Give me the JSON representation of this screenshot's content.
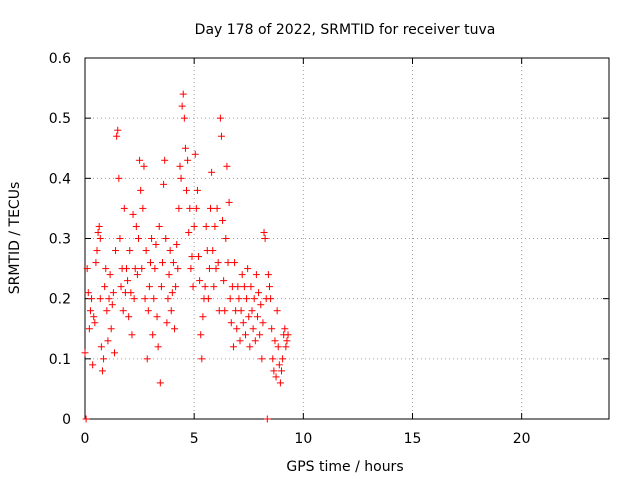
{
  "chart_data": {
    "type": "scatter",
    "title": "Day 178 of 2022, SRMTID for receiver tuva",
    "xlabel": "GPS time / hours",
    "ylabel": "SRMTID / TECUs",
    "xlim": [
      0,
      24
    ],
    "ylim": [
      0,
      0.6
    ],
    "x_ticks": [
      0,
      5,
      10,
      15,
      20
    ],
    "x_tick_labels": [
      "0",
      "5",
      "10",
      "15",
      "20"
    ],
    "y_ticks": [
      0,
      0.1,
      0.2,
      0.3,
      0.4,
      0.5,
      0.6
    ],
    "y_tick_labels": [
      "0",
      "0.1",
      "0.2",
      "0.3",
      "0.4",
      "0.5",
      "0.6"
    ],
    "grid": true,
    "marker": "plus",
    "colors": {
      "series": "#ff0000",
      "grid": "#a0a0a0",
      "axis": "#000000"
    },
    "series": [
      {
        "name": "SRMTID",
        "points": [
          [
            0.0,
            0.11
          ],
          [
            0.05,
            0.0
          ],
          [
            0.1,
            0.25
          ],
          [
            0.15,
            0.21
          ],
          [
            0.2,
            0.15
          ],
          [
            0.25,
            0.18
          ],
          [
            0.3,
            0.2
          ],
          [
            0.35,
            0.09
          ],
          [
            0.4,
            0.17
          ],
          [
            0.45,
            0.16
          ],
          [
            0.5,
            0.26
          ],
          [
            0.55,
            0.28
          ],
          [
            0.6,
            0.31
          ],
          [
            0.65,
            0.32
          ],
          [
            0.7,
            0.3
          ],
          [
            0.7,
            0.2
          ],
          [
            0.75,
            0.12
          ],
          [
            0.8,
            0.08
          ],
          [
            0.85,
            0.1
          ],
          [
            0.9,
            0.22
          ],
          [
            0.95,
            0.25
          ],
          [
            1.0,
            0.18
          ],
          [
            1.05,
            0.13
          ],
          [
            1.1,
            0.2
          ],
          [
            1.15,
            0.24
          ],
          [
            1.2,
            0.15
          ],
          [
            1.25,
            0.19
          ],
          [
            1.3,
            0.21
          ],
          [
            1.35,
            0.11
          ],
          [
            1.4,
            0.28
          ],
          [
            1.45,
            0.47
          ],
          [
            1.5,
            0.48
          ],
          [
            1.55,
            0.4
          ],
          [
            1.6,
            0.3
          ],
          [
            1.65,
            0.22
          ],
          [
            1.7,
            0.25
          ],
          [
            1.75,
            0.18
          ],
          [
            1.8,
            0.35
          ],
          [
            1.85,
            0.21
          ],
          [
            1.9,
            0.25
          ],
          [
            1.95,
            0.23
          ],
          [
            2.0,
            0.17
          ],
          [
            2.05,
            0.28
          ],
          [
            2.1,
            0.21
          ],
          [
            2.15,
            0.14
          ],
          [
            2.2,
            0.34
          ],
          [
            2.25,
            0.2
          ],
          [
            2.3,
            0.25
          ],
          [
            2.35,
            0.32
          ],
          [
            2.4,
            0.24
          ],
          [
            2.45,
            0.3
          ],
          [
            2.5,
            0.43
          ],
          [
            2.55,
            0.38
          ],
          [
            2.6,
            0.25
          ],
          [
            2.65,
            0.35
          ],
          [
            2.7,
            0.42
          ],
          [
            2.75,
            0.2
          ],
          [
            2.8,
            0.28
          ],
          [
            2.85,
            0.1
          ],
          [
            2.9,
            0.18
          ],
          [
            2.95,
            0.22
          ],
          [
            3.0,
            0.26
          ],
          [
            3.05,
            0.3
          ],
          [
            3.1,
            0.14
          ],
          [
            3.15,
            0.2
          ],
          [
            3.2,
            0.25
          ],
          [
            3.25,
            0.29
          ],
          [
            3.3,
            0.17
          ],
          [
            3.35,
            0.12
          ],
          [
            3.4,
            0.32
          ],
          [
            3.45,
            0.06
          ],
          [
            3.5,
            0.22
          ],
          [
            3.55,
            0.26
          ],
          [
            3.6,
            0.39
          ],
          [
            3.65,
            0.43
          ],
          [
            3.7,
            0.3
          ],
          [
            3.75,
            0.16
          ],
          [
            3.8,
            0.2
          ],
          [
            3.85,
            0.24
          ],
          [
            3.9,
            0.28
          ],
          [
            3.95,
            0.18
          ],
          [
            4.0,
            0.21
          ],
          [
            4.05,
            0.26
          ],
          [
            4.1,
            0.15
          ],
          [
            4.15,
            0.22
          ],
          [
            4.2,
            0.29
          ],
          [
            4.25,
            0.25
          ],
          [
            4.3,
            0.35
          ],
          [
            4.35,
            0.42
          ],
          [
            4.4,
            0.4
          ],
          [
            4.45,
            0.52
          ],
          [
            4.5,
            0.54
          ],
          [
            4.55,
            0.5
          ],
          [
            4.6,
            0.45
          ],
          [
            4.65,
            0.38
          ],
          [
            4.7,
            0.43
          ],
          [
            4.75,
            0.31
          ],
          [
            4.8,
            0.35
          ],
          [
            4.85,
            0.25
          ],
          [
            4.9,
            0.27
          ],
          [
            4.95,
            0.22
          ],
          [
            5.0,
            0.32
          ],
          [
            5.05,
            0.44
          ],
          [
            5.1,
            0.35
          ],
          [
            5.15,
            0.38
          ],
          [
            5.2,
            0.27
          ],
          [
            5.25,
            0.23
          ],
          [
            5.3,
            0.14
          ],
          [
            5.35,
            0.1
          ],
          [
            5.4,
            0.17
          ],
          [
            5.45,
            0.2
          ],
          [
            5.5,
            0.22
          ],
          [
            5.55,
            0.32
          ],
          [
            5.6,
            0.28
          ],
          [
            5.65,
            0.2
          ],
          [
            5.7,
            0.25
          ],
          [
            5.75,
            0.35
          ],
          [
            5.8,
            0.41
          ],
          [
            5.85,
            0.28
          ],
          [
            5.9,
            0.22
          ],
          [
            5.95,
            0.32
          ],
          [
            6.0,
            0.25
          ],
          [
            6.05,
            0.35
          ],
          [
            6.1,
            0.26
          ],
          [
            6.15,
            0.18
          ],
          [
            6.2,
            0.5
          ],
          [
            6.25,
            0.47
          ],
          [
            6.3,
            0.33
          ],
          [
            6.35,
            0.23
          ],
          [
            6.4,
            0.18
          ],
          [
            6.45,
            0.3
          ],
          [
            6.5,
            0.42
          ],
          [
            6.55,
            0.26
          ],
          [
            6.6,
            0.36
          ],
          [
            6.65,
            0.2
          ],
          [
            6.7,
            0.16
          ],
          [
            6.75,
            0.22
          ],
          [
            6.8,
            0.12
          ],
          [
            6.85,
            0.26
          ],
          [
            6.9,
            0.18
          ],
          [
            6.95,
            0.15
          ],
          [
            7.0,
            0.22
          ],
          [
            7.05,
            0.2
          ],
          [
            7.1,
            0.13
          ],
          [
            7.15,
            0.18
          ],
          [
            7.2,
            0.24
          ],
          [
            7.25,
            0.16
          ],
          [
            7.3,
            0.22
          ],
          [
            7.35,
            0.14
          ],
          [
            7.4,
            0.2
          ],
          [
            7.45,
            0.25
          ],
          [
            7.5,
            0.17
          ],
          [
            7.55,
            0.12
          ],
          [
            7.6,
            0.22
          ],
          [
            7.65,
            0.18
          ],
          [
            7.7,
            0.15
          ],
          [
            7.75,
            0.2
          ],
          [
            7.8,
            0.13
          ],
          [
            7.85,
            0.24
          ],
          [
            7.9,
            0.17
          ],
          [
            7.95,
            0.21
          ],
          [
            8.0,
            0.14
          ],
          [
            8.05,
            0.19
          ],
          [
            8.1,
            0.1
          ],
          [
            8.15,
            0.16
          ],
          [
            8.2,
            0.31
          ],
          [
            8.25,
            0.3
          ],
          [
            8.3,
            0.2
          ],
          [
            8.35,
            0.0
          ],
          [
            8.4,
            0.24
          ],
          [
            8.45,
            0.22
          ],
          [
            8.5,
            0.2
          ],
          [
            8.55,
            0.15
          ],
          [
            8.6,
            0.1
          ],
          [
            8.65,
            0.08
          ],
          [
            8.7,
            0.13
          ],
          [
            8.75,
            0.07
          ],
          [
            8.8,
            0.18
          ],
          [
            8.85,
            0.12
          ],
          [
            8.9,
            0.09
          ],
          [
            8.95,
            0.06
          ],
          [
            9.0,
            0.08
          ],
          [
            9.05,
            0.1
          ],
          [
            9.1,
            0.14
          ],
          [
            9.15,
            0.15
          ],
          [
            9.2,
            0.12
          ],
          [
            9.25,
            0.13
          ],
          [
            9.3,
            0.14
          ]
        ]
      }
    ]
  }
}
